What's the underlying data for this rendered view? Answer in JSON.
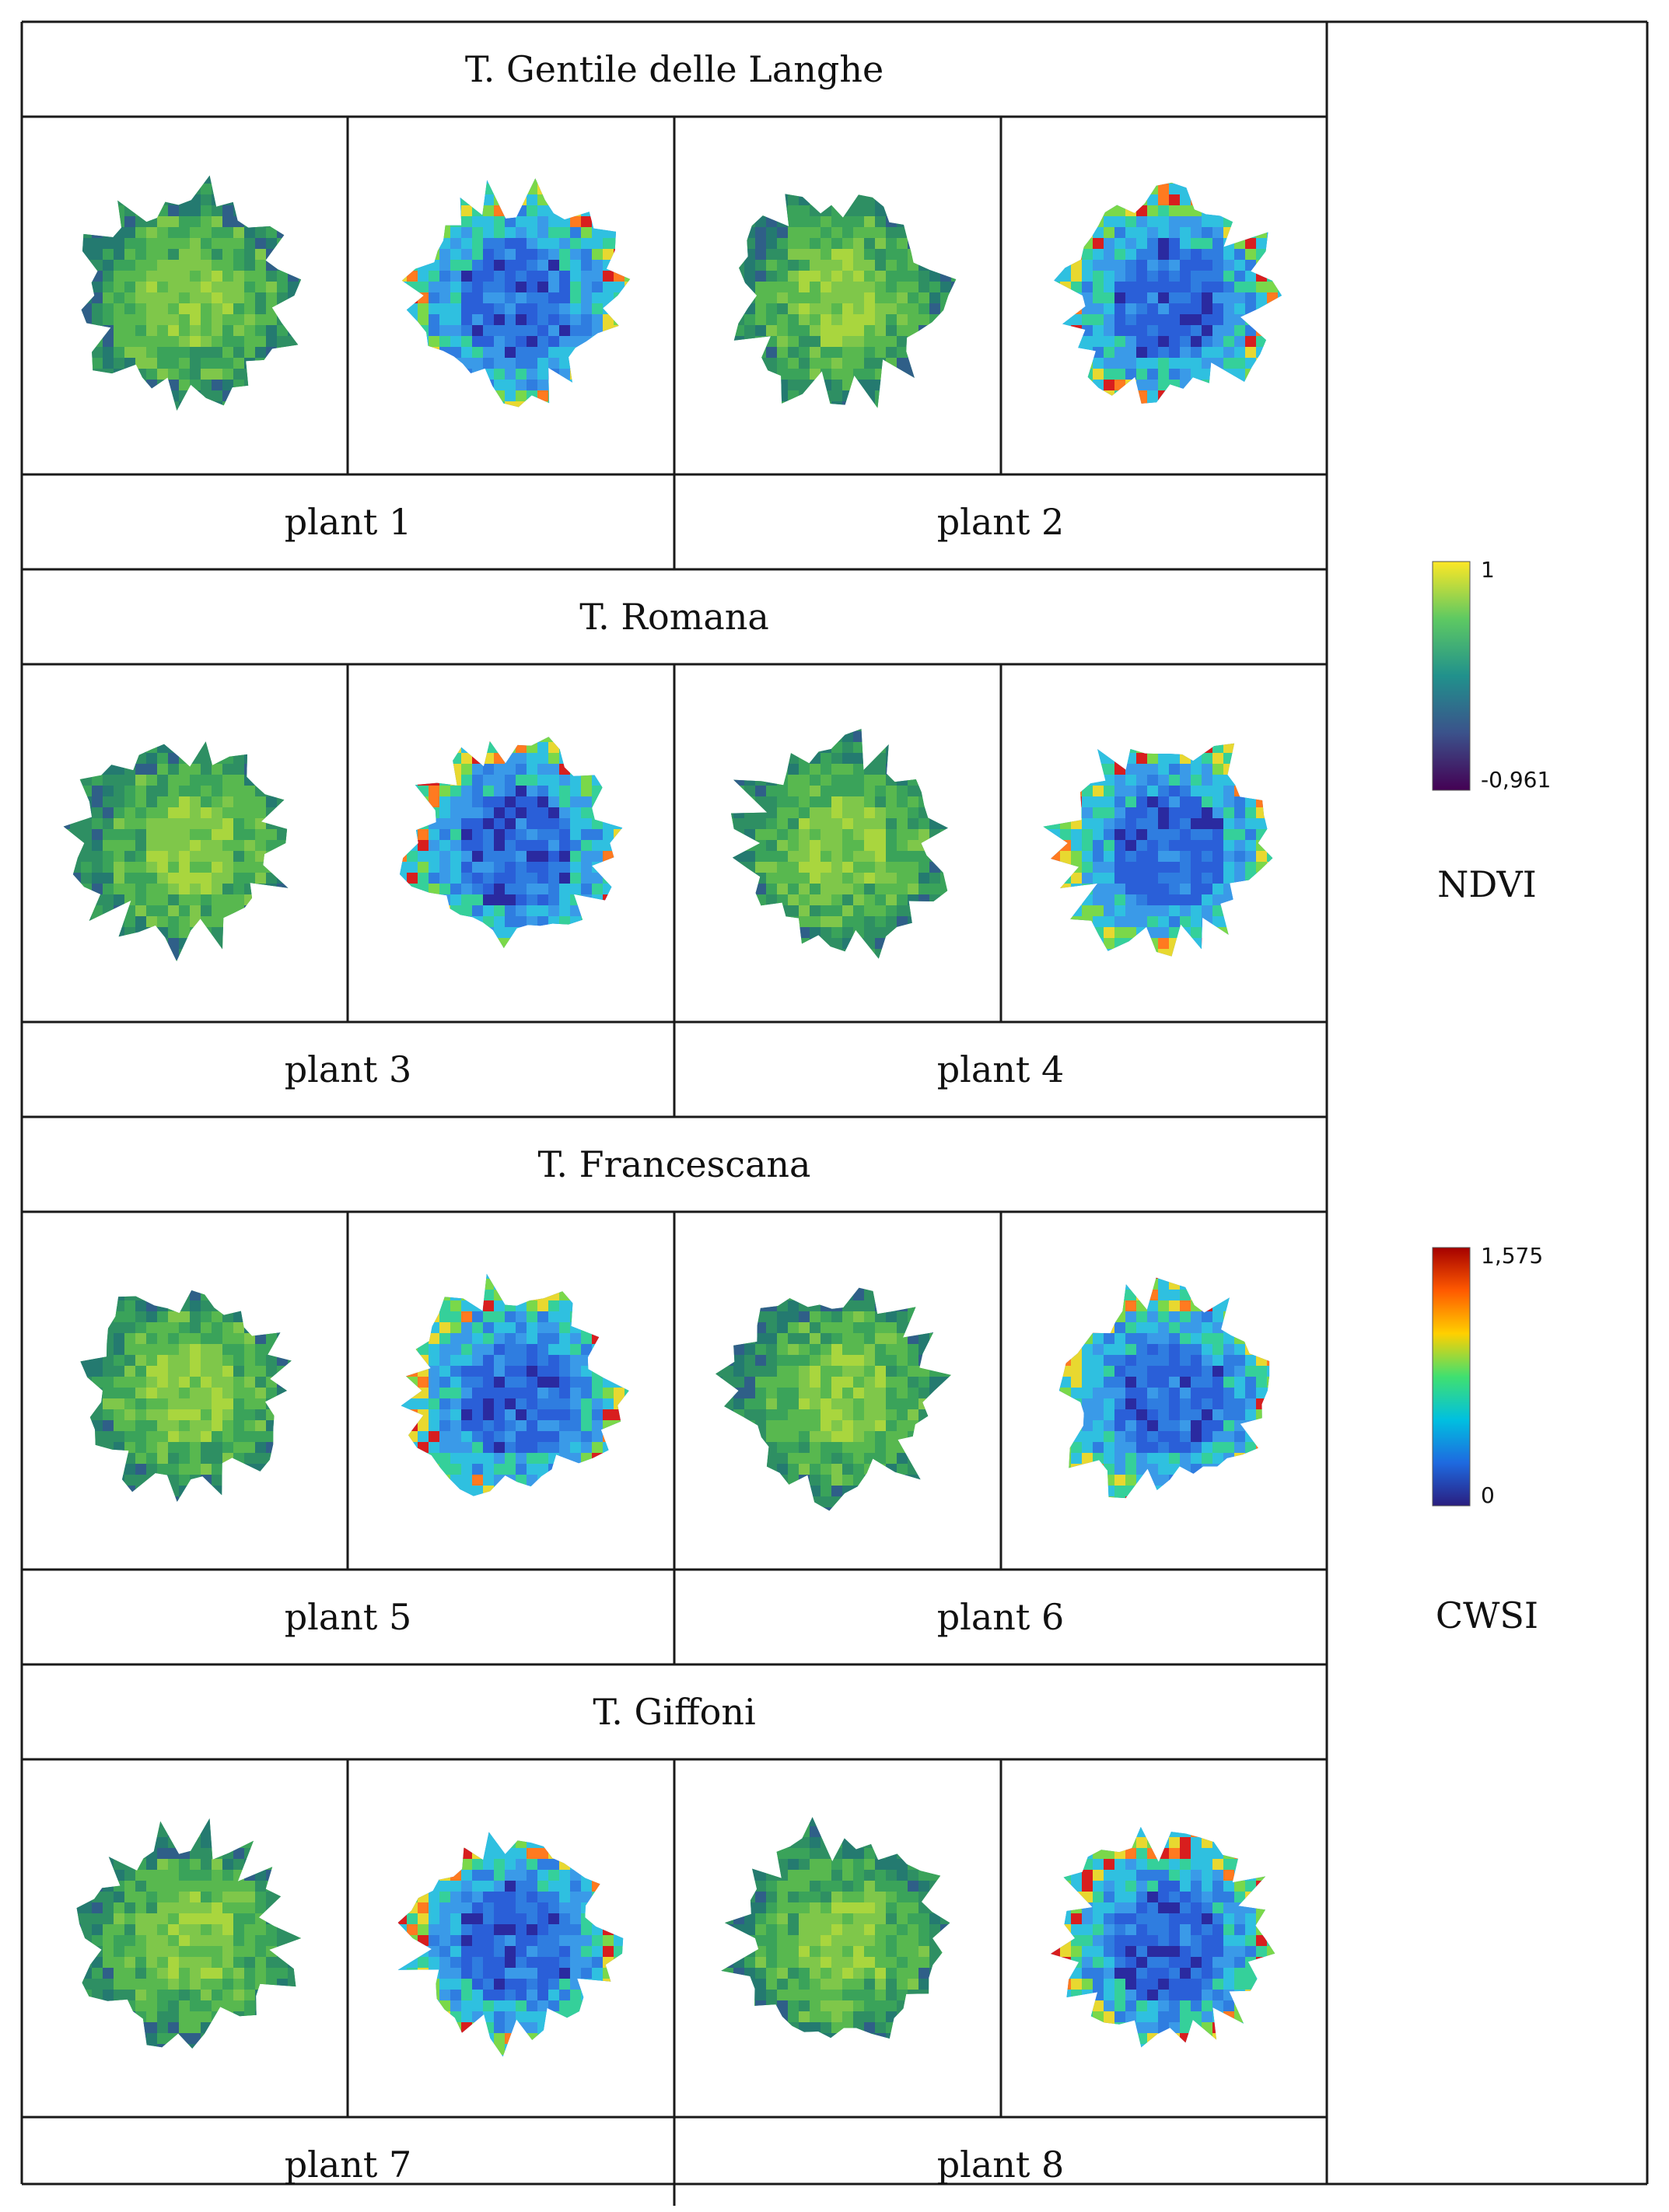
{
  "groups": [
    {
      "title": "T. Gentile delle Langhe",
      "plants": [
        "plant 1",
        "plant 2"
      ]
    },
    {
      "title": "T. Romana",
      "plants": [
        "plant 3",
        "plant 4"
      ]
    },
    {
      "title": "T. Francescana",
      "plants": [
        "plant 5",
        "plant 6"
      ]
    },
    {
      "title": "T. Giffoni",
      "plants": [
        "plant 7",
        "plant 8"
      ]
    }
  ],
  "legends": {
    "ndvi": {
      "max_label": "1",
      "min_label": "-0,961",
      "caption": "NDVI",
      "colors": [
        "#fde725",
        "#5ec962",
        "#21918c",
        "#3b528b",
        "#440154"
      ]
    },
    "cwsi": {
      "max_label": "1,575",
      "min_label": "0",
      "caption": "CWSI",
      "colors": [
        "#a50000",
        "#ff5a00",
        "#ffd000",
        "#40e070",
        "#00c0e0",
        "#1e6ae0",
        "#2a1e80"
      ]
    }
  },
  "map_colors": {
    "ndvi": [
      "#3aa35a",
      "#58b84f",
      "#7fc74a",
      "#a9d63e",
      "#2e8f63",
      "#247a70",
      "#2f5f88"
    ],
    "cwsi": [
      "#2f7de0",
      "#2a5fd8",
      "#3a9ae8",
      "#2fc0e0",
      "#35d09a",
      "#7ad84a",
      "#e8d830",
      "#ff7a20",
      "#d81e1e",
      "#2a2aa0"
    ]
  }
}
